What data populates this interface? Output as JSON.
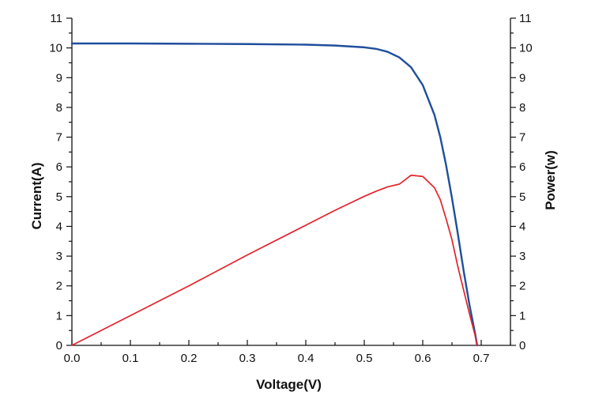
{
  "chart_data": {
    "type": "line",
    "xlabel": "Voltage(V)",
    "ylabel_left": "Current(A)",
    "ylabel_right": "Power(w)",
    "xlim": [
      0,
      0.75
    ],
    "ylim": [
      0,
      11
    ],
    "x_ticks": [
      0.0,
      0.1,
      0.2,
      0.3,
      0.4,
      0.5,
      0.6,
      0.7
    ],
    "x_tick_labels": [
      "0.0",
      "0.1",
      "0.2",
      "0.3",
      "0.4",
      "0.5",
      "0.6",
      "0.7"
    ],
    "y_ticks": [
      0,
      1,
      2,
      3,
      4,
      5,
      6,
      7,
      8,
      9,
      10,
      11
    ],
    "y_tick_labels": [
      "0",
      "1",
      "2",
      "3",
      "4",
      "5",
      "6",
      "7",
      "8",
      "9",
      "10",
      "11"
    ],
    "grid": false,
    "series": [
      {
        "color": "#1f4e9c",
        "axis": "left",
        "x": [
          0.0,
          0.1,
          0.2,
          0.3,
          0.4,
          0.45,
          0.5,
          0.52,
          0.54,
          0.56,
          0.58,
          0.6,
          0.62,
          0.63,
          0.64,
          0.65,
          0.66,
          0.67,
          0.68,
          0.69,
          0.693
        ],
        "y": [
          10.15,
          10.15,
          10.14,
          10.13,
          10.11,
          10.08,
          10.02,
          9.97,
          9.87,
          9.68,
          9.35,
          8.75,
          7.75,
          7.0,
          6.05,
          4.95,
          3.75,
          2.5,
          1.35,
          0.35,
          0.0
        ]
      },
      {
        "color": "#e3242b",
        "axis": "right",
        "x": [
          0.0,
          0.1,
          0.2,
          0.3,
          0.4,
          0.45,
          0.5,
          0.52,
          0.54,
          0.56,
          0.58,
          0.6,
          0.62,
          0.63,
          0.64,
          0.65,
          0.66,
          0.67,
          0.68,
          0.69,
          0.693
        ],
        "y": [
          0.0,
          1.0,
          2.0,
          3.04,
          4.04,
          4.54,
          5.01,
          5.18,
          5.33,
          5.42,
          5.72,
          5.68,
          5.3,
          4.9,
          4.25,
          3.55,
          2.65,
          1.85,
          1.05,
          0.3,
          0.0
        ]
      }
    ]
  }
}
